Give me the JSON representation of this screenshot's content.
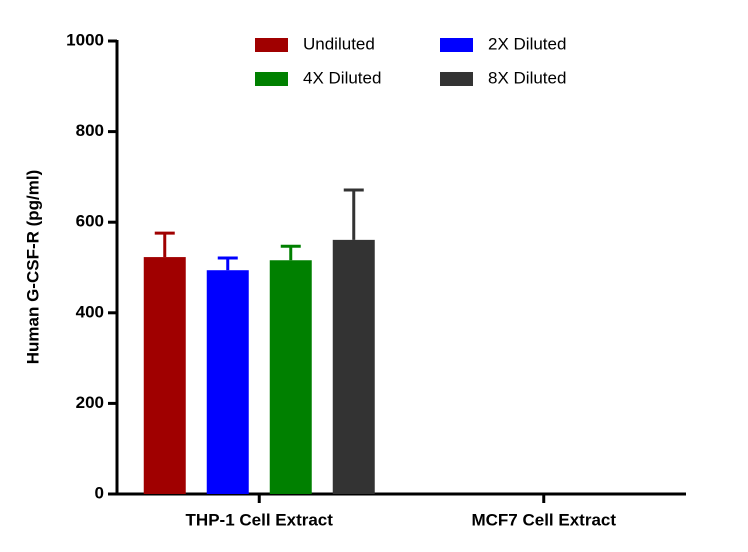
{
  "chart_data": {
    "type": "bar",
    "y_label": "Human G-CSF-R (pg/ml)",
    "categories": [
      "THP-1 Cell Extract",
      "MCF7 Cell Extract"
    ],
    "series": [
      {
        "name": "Undiluted",
        "color": "#a00000",
        "values": [
          523,
          null
        ],
        "errors": [
          53,
          null
        ]
      },
      {
        "name": "2X Diluted",
        "color": "#0000ff",
        "values": [
          494,
          null
        ],
        "errors": [
          27,
          null
        ]
      },
      {
        "name": "4X Diluted",
        "color": "#008000",
        "values": [
          516,
          null
        ],
        "errors": [
          31,
          null
        ]
      },
      {
        "name": "8X Diluted",
        "color": "#333333",
        "values": [
          561,
          null
        ],
        "errors": [
          110,
          null
        ]
      }
    ],
    "ylim": [
      0,
      1000
    ],
    "yticks": [
      0,
      200,
      400,
      600,
      800,
      1000
    ]
  }
}
